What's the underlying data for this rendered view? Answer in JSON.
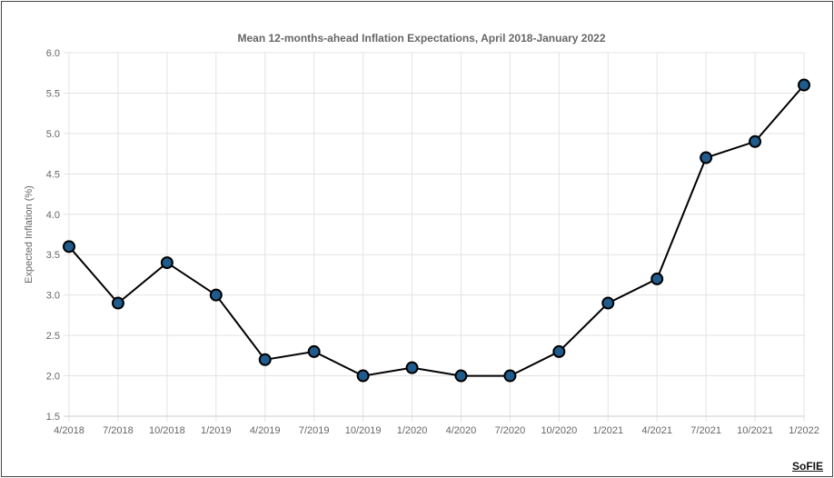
{
  "chart_data": {
    "type": "line",
    "title": "Mean 12-months-ahead Inflation Expectations, April 2018-January 2022",
    "xlabel": "",
    "ylabel": "Expected Inflation (%)",
    "categories": [
      "4/2018",
      "7/2018",
      "10/2018",
      "1/2019",
      "4/2019",
      "7/2019",
      "10/2019",
      "1/2020",
      "4/2020",
      "7/2020",
      "10/2020",
      "1/2021",
      "4/2021",
      "7/2021",
      "10/2021",
      "1/2022"
    ],
    "values": [
      3.6,
      2.9,
      3.4,
      3.0,
      2.2,
      2.3,
      2.0,
      2.1,
      2.0,
      2.0,
      2.3,
      2.9,
      3.2,
      4.7,
      4.9,
      5.6
    ],
    "ylim": [
      1.5,
      6.0
    ],
    "yticks": [
      "1.5",
      "2.0",
      "2.5",
      "3.0",
      "3.5",
      "4.0",
      "4.5",
      "5.0",
      "5.5",
      "6.0"
    ],
    "grid": true,
    "colors": {
      "line": "#000000",
      "marker": "#1f5b8c",
      "grid": "#e3e3e3"
    }
  },
  "logo": "SoFIE"
}
